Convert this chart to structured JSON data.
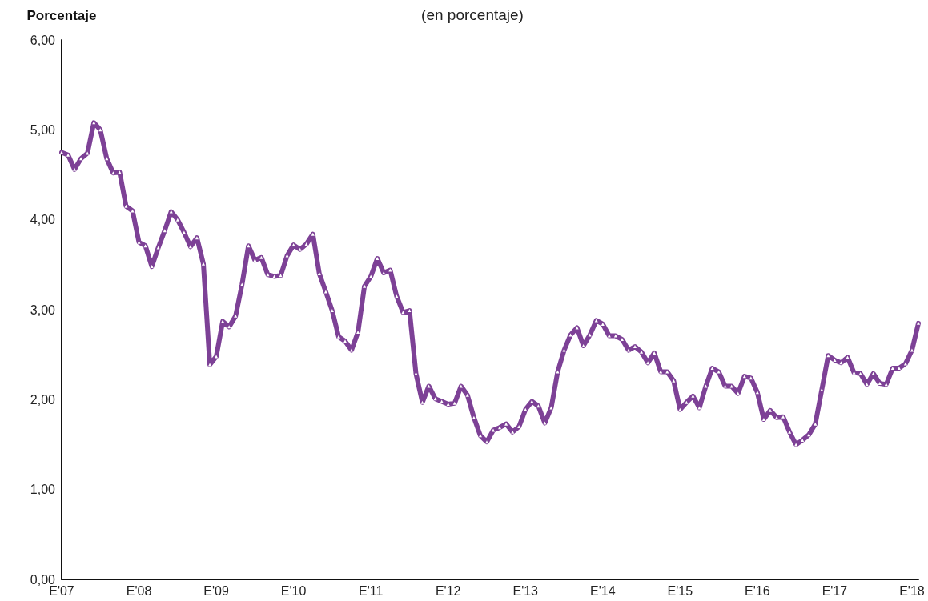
{
  "chart_data": {
    "type": "line",
    "subtitle": "(en porcentaje)",
    "ylabel": "Porcentaje",
    "categories": [
      "E'07",
      null,
      null,
      null,
      null,
      null,
      null,
      null,
      null,
      null,
      null,
      null,
      "E'08",
      null,
      null,
      null,
      null,
      null,
      null,
      null,
      null,
      null,
      null,
      null,
      "E'09",
      null,
      null,
      null,
      null,
      null,
      null,
      null,
      null,
      null,
      null,
      null,
      "E'10",
      null,
      null,
      null,
      null,
      null,
      null,
      null,
      null,
      null,
      null,
      null,
      "E'11",
      null,
      null,
      null,
      null,
      null,
      null,
      null,
      null,
      null,
      null,
      null,
      "E'12",
      null,
      null,
      null,
      null,
      null,
      null,
      null,
      null,
      null,
      null,
      null,
      "E'13",
      null,
      null,
      null,
      null,
      null,
      null,
      null,
      null,
      null,
      null,
      null,
      "E'14",
      null,
      null,
      null,
      null,
      null,
      null,
      null,
      null,
      null,
      null,
      null,
      "E'15",
      null,
      null,
      null,
      null,
      null,
      null,
      null,
      null,
      null,
      null,
      null,
      "E'16",
      null,
      null,
      null,
      null,
      null,
      null,
      null,
      null,
      null,
      null,
      null,
      "E'17",
      null,
      null,
      null,
      null,
      null,
      null,
      null,
      null,
      null,
      null,
      null,
      "E'18",
      null
    ],
    "series": [
      {
        "color": "#7d4196",
        "values": [
          4.75,
          4.72,
          4.56,
          4.68,
          4.74,
          5.08,
          5.0,
          4.68,
          4.52,
          4.53,
          4.15,
          4.1,
          3.75,
          3.71,
          3.48,
          3.69,
          3.88,
          4.09,
          4.0,
          3.86,
          3.7,
          3.8,
          3.51,
          2.39,
          2.48,
          2.87,
          2.81,
          2.93,
          3.28,
          3.71,
          3.55,
          3.58,
          3.39,
          3.37,
          3.38,
          3.6,
          3.72,
          3.67,
          3.73,
          3.84,
          3.4,
          3.2,
          2.99,
          2.7,
          2.65,
          2.55,
          2.75,
          3.26,
          3.37,
          3.57,
          3.41,
          3.44,
          3.15,
          2.97,
          2.99,
          2.29,
          1.97,
          2.15,
          2.01,
          1.98,
          1.95,
          1.96,
          2.15,
          2.05,
          1.8,
          1.6,
          1.53,
          1.66,
          1.69,
          1.73,
          1.64,
          1.7,
          1.89,
          1.98,
          1.93,
          1.74,
          1.91,
          2.31,
          2.55,
          2.72,
          2.8,
          2.6,
          2.72,
          2.88,
          2.84,
          2.71,
          2.71,
          2.67,
          2.55,
          2.59,
          2.53,
          2.41,
          2.52,
          2.31,
          2.31,
          2.21,
          1.89,
          1.97,
          2.04,
          1.91,
          2.15,
          2.35,
          2.31,
          2.15,
          2.15,
          2.07,
          2.26,
          2.24,
          2.08,
          1.78,
          1.88,
          1.8,
          1.81,
          1.64,
          1.5,
          1.55,
          1.61,
          1.73,
          2.11,
          2.49,
          2.44,
          2.41,
          2.47,
          2.3,
          2.29,
          2.17,
          2.29,
          2.18,
          2.17,
          2.35,
          2.35,
          2.4,
          2.55,
          2.85
        ]
      }
    ],
    "ylim": [
      0,
      6
    ],
    "yticks": [
      {
        "value": 0,
        "label": "0,00"
      },
      {
        "value": 1,
        "label": "1,00"
      },
      {
        "value": 2,
        "label": "2,00"
      },
      {
        "value": 3,
        "label": "3,00"
      },
      {
        "value": 4,
        "label": "4,00"
      },
      {
        "value": 5,
        "label": "5,00"
      },
      {
        "value": 6,
        "label": "6,00"
      }
    ],
    "grid": false,
    "marker": "triangle",
    "line_style": "solid"
  }
}
